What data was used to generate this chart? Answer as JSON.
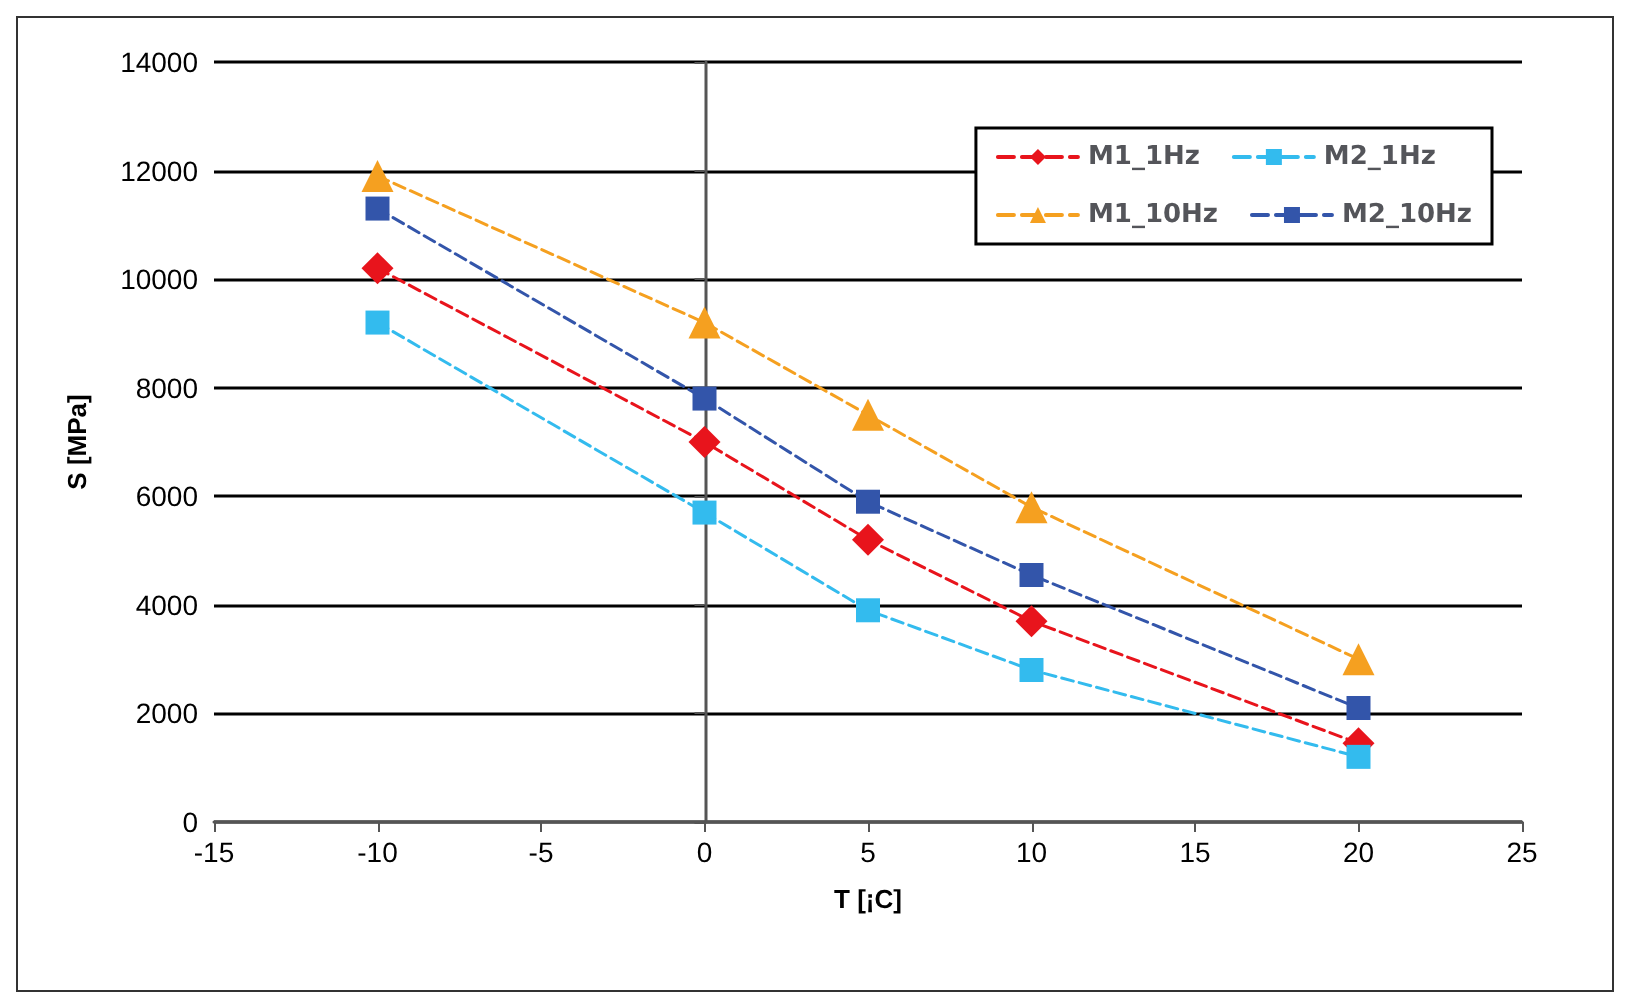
{
  "chart_data": {
    "type": "line",
    "xlabel": "T [¡C]",
    "ylabel": "S [MPa]",
    "x": [
      -10,
      0,
      5,
      10,
      20
    ],
    "series": [
      {
        "name": "M1_1Hz",
        "color": "#e8141c",
        "marker": "diamond",
        "values": [
          10200,
          7000,
          5200,
          3700,
          1450
        ]
      },
      {
        "name": "M2_1Hz",
        "color": "#33bbee",
        "marker": "square",
        "values": [
          9200,
          5700,
          3900,
          2800,
          1200
        ]
      },
      {
        "name": "M1_10Hz",
        "color": "#f5a020",
        "marker": "triangle",
        "values": [
          11900,
          9200,
          7500,
          5800,
          3000
        ]
      },
      {
        "name": "M2_10Hz",
        "color": "#3355aa",
        "marker": "square",
        "values": [
          11300,
          7800,
          5900,
          4550,
          2100
        ]
      }
    ],
    "xlim": [
      -15,
      25
    ],
    "xticks": [
      -15,
      -10,
      -5,
      0,
      5,
      10,
      15,
      20,
      25
    ],
    "ylim": [
      0,
      14000
    ],
    "yticks": [
      0,
      2000,
      4000,
      6000,
      8000,
      10000,
      12000,
      14000
    ],
    "grid": "y",
    "legend": "top right",
    "line_style": "dashed"
  }
}
